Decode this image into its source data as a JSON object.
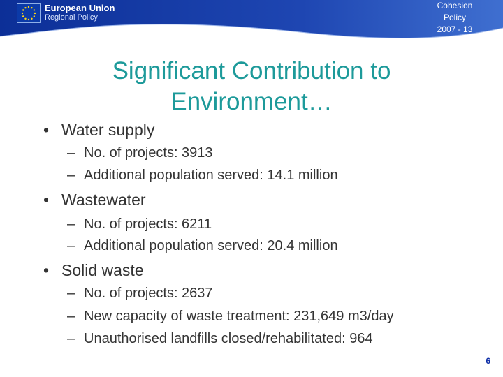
{
  "header": {
    "org_name": "European Union",
    "org_sub": "Regional Policy",
    "badge_lines": [
      "Cohesion",
      "Policy",
      "2007 - 13"
    ]
  },
  "slide": {
    "title_lines": [
      "Significant Contribution to",
      "Environment…"
    ],
    "sections": [
      {
        "label": "Water supply",
        "items": [
          "No. of projects: 3913",
          "Additional population served: 14.1 million"
        ]
      },
      {
        "label": "Wastewater",
        "items": [
          "No. of projects: 6211",
          "Additional population served: 20.4 million"
        ]
      },
      {
        "label": "Solid waste",
        "items": [
          "No. of projects: 2637",
          "New capacity of waste treatment: 231,649 m3/day",
          "Unauthorised landfills closed/rehabilitated: 964"
        ]
      }
    ],
    "page_number": "6"
  },
  "colors": {
    "header_blue": "#1a3ea8",
    "title_teal": "#1d9a9a",
    "page_number": "#1030a8"
  }
}
